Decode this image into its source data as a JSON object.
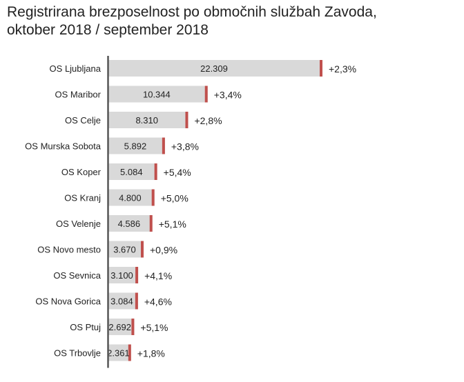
{
  "chart_data": {
    "type": "bar",
    "orientation": "horizontal",
    "title_lines": [
      "Registrirana brezposelnost po območnih službah Zavoda,",
      "oktober 2018 / september 2018"
    ],
    "categories": [
      "OS Ljubljana",
      "OS Maribor",
      "OS Celje",
      "OS Murska Sobota",
      "OS Koper",
      "OS Kranj",
      "OS Velenje",
      "OS Novo mesto",
      "OS Sevnica",
      "OS Nova Gorica",
      "OS Ptuj",
      "OS Trbovlje"
    ],
    "series": [
      {
        "values": [
          22309,
          10344,
          8310,
          5892,
          5084,
          4800,
          4586,
          3670,
          3100,
          3084,
          2692,
          2361
        ],
        "value_labels": [
          "22.309",
          "10.344",
          "8.310",
          "5.892",
          "5.084",
          "4.800",
          "4.586",
          "3.670",
          "3.100",
          "3.084",
          "2.692",
          "2.361"
        ],
        "change_labels": [
          "+2,3%",
          "+3,4%",
          "+2,8%",
          "+3,8%",
          "+5,4%",
          "+5,0%",
          "+5,1%",
          "+0,9%",
          "+4,1%",
          "+4,6%",
          "+5,1%",
          "+1,8%"
        ]
      }
    ],
    "xlim": [
      0,
      22309
    ],
    "grid": false,
    "legend": "none",
    "colors": {
      "bar": "#d9d9d9",
      "marker": "#c0504d",
      "axis": "#555555",
      "text": "#222222"
    }
  }
}
